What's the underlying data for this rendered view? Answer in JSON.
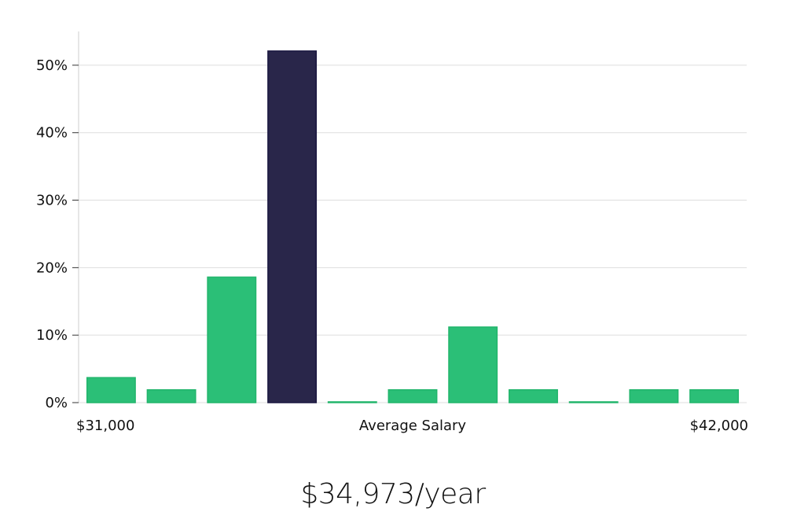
{
  "chart_data": {
    "type": "bar",
    "values": [
      3.7,
      1.9,
      18.6,
      52.1,
      0.1,
      1.9,
      11.2,
      1.9,
      0.1,
      1.9,
      1.9
    ],
    "highlight_index": 3,
    "ylim": [
      0,
      55
    ],
    "yticks": [
      0,
      10,
      20,
      30,
      40,
      50
    ],
    "ytick_labels": [
      "0%",
      "10%",
      "20%",
      "30%",
      "40%",
      "50%"
    ],
    "x_min_label": "$31,000",
    "x_max_label": "$42,000",
    "xlabel": "Average Salary",
    "grid": true,
    "colors": {
      "bar": "#2bbf77",
      "bar_edge": "#22b56c",
      "highlight": "#29264a",
      "highlight_edge": "#1a1740",
      "grid": "#dddddd",
      "axis": "#cccccc"
    }
  },
  "summary": {
    "value": "$34,973/year"
  }
}
